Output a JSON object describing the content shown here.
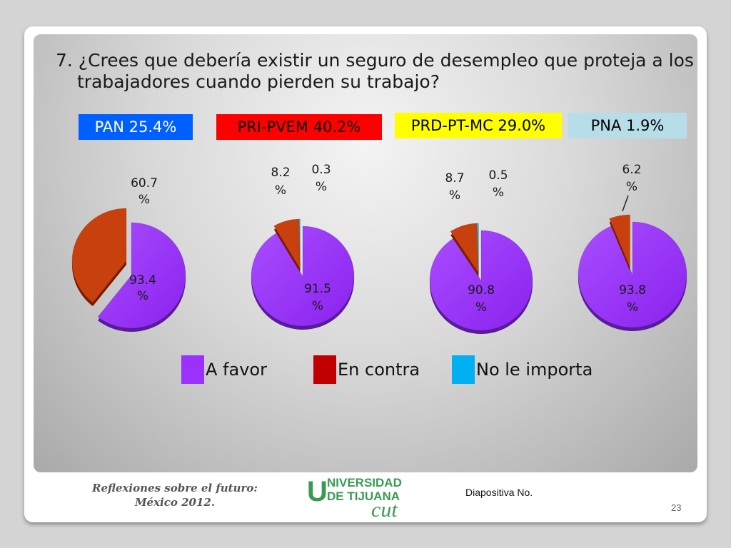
{
  "question": "7. ¿Crees que debería existir un seguro de desempleo que proteja a los trabajadores cuando pierden su trabajo?",
  "parties": [
    {
      "label": "PAN 25.4%",
      "bg": "#0060ff",
      "fg": "#ffffff"
    },
    {
      "label": "PRI-PVEM  40.2%",
      "bg": "#ff0000",
      "fg": "#000000"
    },
    {
      "label": "PRD-PT-MC 29.0%",
      "bg": "#ffff00",
      "fg": "#000000"
    },
    {
      "label": "PNA 1.9%",
      "bg": "#b7dee8",
      "fg": "#000000"
    }
  ],
  "legend": [
    {
      "label": "A favor",
      "color": "#9b30ff"
    },
    {
      "label": "En contra",
      "color": "#c00000"
    },
    {
      "label": "No le importa",
      "color": "#00b0f0"
    }
  ],
  "chart_data": [
    {
      "type": "pie",
      "group": "PAN 25.4%",
      "categories": [
        "A favor",
        "En contra",
        "No le importa"
      ],
      "values": [
        93.4,
        60.7,
        null
      ],
      "labels": [
        [
          "93.4",
          "%"
        ],
        [
          "60.7",
          "%"
        ],
        null
      ]
    },
    {
      "type": "pie",
      "group": "PRI-PVEM  40.2%",
      "categories": [
        "A favor",
        "En contra",
        "No le importa"
      ],
      "values": [
        91.5,
        8.2,
        0.3
      ],
      "labels": [
        [
          "91.5",
          "%"
        ],
        [
          "8.2",
          "%"
        ],
        [
          "0.3",
          "%"
        ]
      ]
    },
    {
      "type": "pie",
      "group": "PRD-PT-MC 29.0%",
      "categories": [
        "A favor",
        "En contra",
        "No le importa"
      ],
      "values": [
        90.8,
        8.7,
        0.5
      ],
      "labels": [
        [
          "90.8",
          "%"
        ],
        [
          "8.7",
          "%"
        ],
        [
          "0.5",
          "%"
        ]
      ]
    },
    {
      "type": "pie",
      "group": "PNA 1.9%",
      "categories": [
        "A favor",
        "En contra",
        "No le importa"
      ],
      "values": [
        93.8,
        6.2,
        null
      ],
      "labels": [
        [
          "93.8",
          "%"
        ],
        [
          "6.2",
          "%"
        ],
        null
      ]
    }
  ],
  "footer": {
    "title_line1": "Reflexiones sobre el futuro:",
    "title_line2": "México 2012.",
    "logo_line1": "NIVERSIDAD",
    "logo_line2": "DE TIJUANA",
    "logo_letter": "U",
    "logo_cut": "cut",
    "slide_label": "Diapositiva No.",
    "slide_number": "23"
  }
}
